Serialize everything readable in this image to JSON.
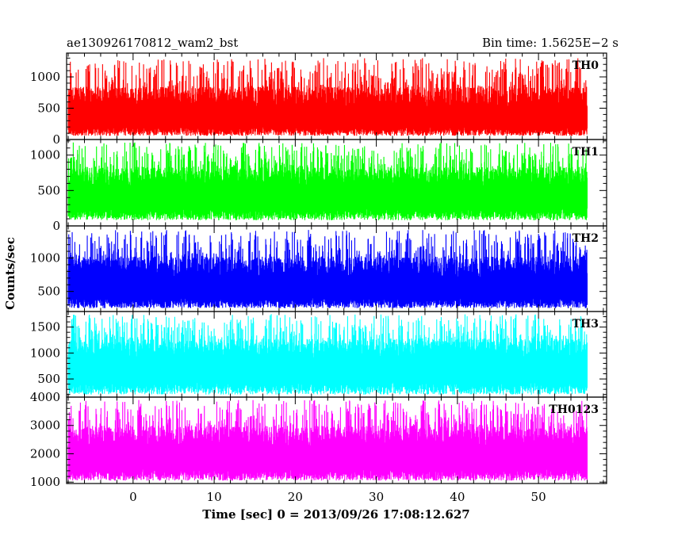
{
  "chart_data": {
    "type": "line",
    "title": "ae130926170812_wam2_bst",
    "subtitle": "Bin time: 1.5625E−2 s",
    "xlabel": "Time [sec] 0 = 2013/09/26 17:08:12.627",
    "ylabel": "Counts/sec",
    "xlim": [
      -8.2,
      58.4
    ],
    "x_range_data": [
      -8,
      56
    ],
    "x_ticks": [
      0,
      10,
      20,
      30,
      40,
      50
    ],
    "x_tick_labels": [
      "0",
      "10",
      "20",
      "30",
      "40",
      "50"
    ],
    "grid": false,
    "panels": [
      {
        "name": "TH0",
        "color": "#ff0000",
        "ylim": [
          0,
          1380
        ],
        "y_ticks": [
          0,
          500,
          1000
        ],
        "y_tick_labels": [
          "0",
          "500",
          "1000"
        ],
        "baseline": 480,
        "low": 60,
        "high": 1300
      },
      {
        "name": "TH1",
        "color": "#00ff00",
        "ylim": [
          0,
          1220
        ],
        "y_ticks": [
          0,
          500,
          1000
        ],
        "y_tick_labels": [
          "0",
          "500",
          "1000"
        ],
        "baseline": 560,
        "low": 80,
        "high": 1180
      },
      {
        "name": "TH2",
        "color": "#0000ff",
        "ylim": [
          200,
          1480
        ],
        "y_ticks": [
          500,
          1000
        ],
        "y_tick_labels": [
          "500",
          "1000"
        ],
        "baseline": 700,
        "low": 250,
        "high": 1420
      },
      {
        "name": "TH3",
        "color": "#00ffff",
        "ylim": [
          150,
          1800
        ],
        "y_ticks": [
          500,
          1000,
          1500
        ],
        "y_tick_labels": [
          "500",
          "1000",
          "1500"
        ],
        "baseline": 900,
        "low": 200,
        "high": 1750
      },
      {
        "name": "TH0123",
        "color": "#ff00ff",
        "ylim": [
          950,
          4000
        ],
        "y_ticks": [
          1000,
          2000,
          3000,
          4000
        ],
        "y_tick_labels": [
          "1000",
          "2000",
          "3000",
          "4000"
        ],
        "baseline": 2250,
        "low": 1050,
        "high": 3900
      }
    ]
  }
}
